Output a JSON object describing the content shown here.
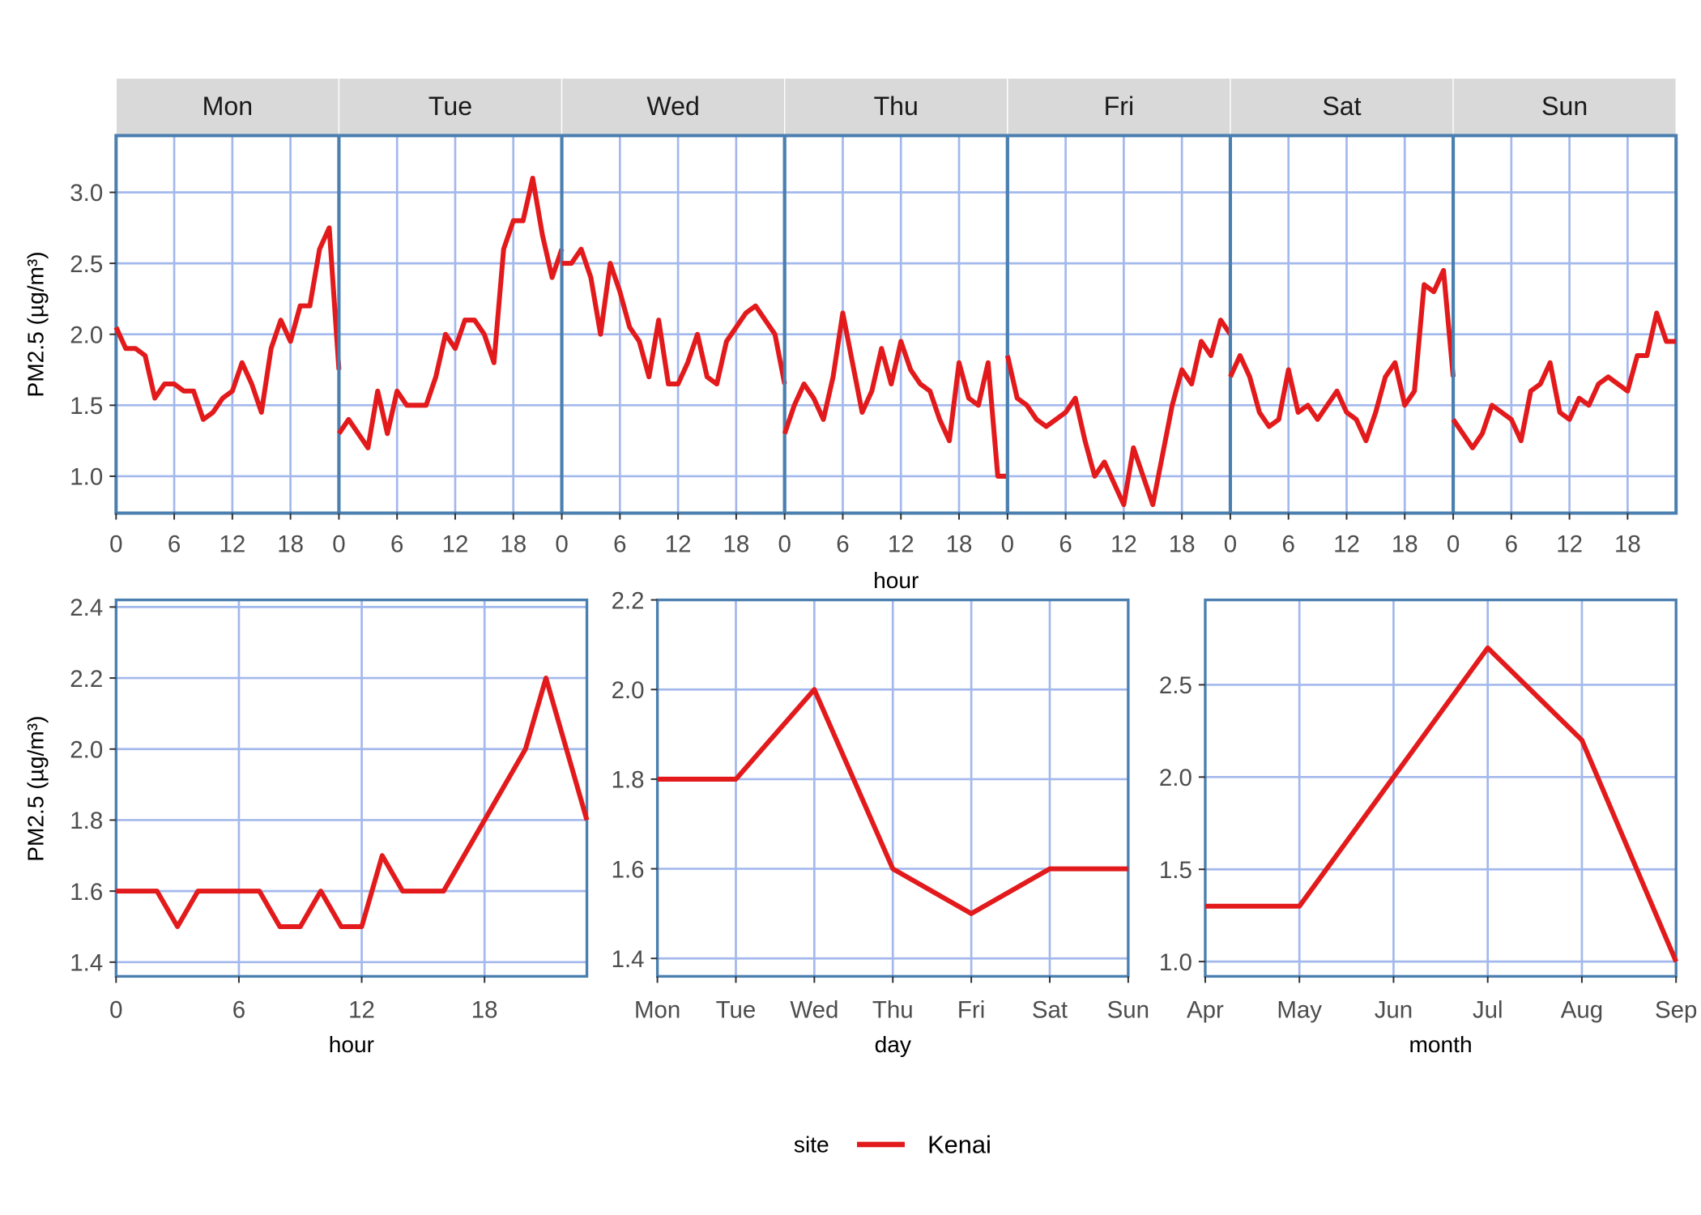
{
  "colors": {
    "line": "#e31a1c",
    "grid": "#a3b8ec",
    "border": "#4a7fb0",
    "strip": "#d9d9d9"
  },
  "legend": {
    "title": "site",
    "entries": [
      "Kenai"
    ]
  },
  "chart_data": [
    {
      "type": "line",
      "facet_by": "day",
      "xlabel": "hour",
      "ylabel": "PM2.5 (µg/m³)",
      "xlim": [
        0,
        23
      ],
      "xticks": [
        0,
        6,
        12,
        18
      ],
      "ylim": [
        0.74,
        3.4
      ],
      "yticks": [
        1.0,
        1.5,
        2.0,
        2.5,
        3.0
      ],
      "grid": true,
      "facets": [
        {
          "label": "Mon",
          "values": [
            2.05,
            1.9,
            1.9,
            1.85,
            1.55,
            1.65,
            1.65,
            1.6,
            1.6,
            1.4,
            1.45,
            1.55,
            1.6,
            1.8,
            1.65,
            1.45,
            1.9,
            2.1,
            1.95,
            2.2,
            2.2,
            2.6,
            2.75,
            1.75
          ]
        },
        {
          "label": "Tue",
          "values": [
            1.3,
            1.4,
            1.3,
            1.2,
            1.6,
            1.3,
            1.6,
            1.5,
            1.5,
            1.5,
            1.7,
            2.0,
            1.9,
            2.1,
            2.1,
            2.0,
            1.8,
            2.6,
            2.8,
            2.8,
            3.1,
            2.7,
            2.4,
            2.6
          ]
        },
        {
          "label": "Wed",
          "values": [
            2.5,
            2.5,
            2.6,
            2.4,
            2.0,
            2.5,
            2.3,
            2.05,
            1.95,
            1.7,
            2.1,
            1.65,
            1.65,
            1.8,
            2.0,
            1.7,
            1.65,
            1.95,
            2.05,
            2.15,
            2.2,
            2.1,
            2.0,
            1.65
          ]
        },
        {
          "label": "Thu",
          "values": [
            1.3,
            1.5,
            1.65,
            1.55,
            1.4,
            1.7,
            2.15,
            1.8,
            1.45,
            1.6,
            1.9,
            1.65,
            1.95,
            1.75,
            1.65,
            1.6,
            1.4,
            1.25,
            1.8,
            1.55,
            1.5,
            1.8,
            1.0,
            1.0
          ]
        },
        {
          "label": "Fri",
          "values": [
            1.85,
            1.55,
            1.5,
            1.4,
            1.35,
            1.4,
            1.45,
            1.55,
            1.25,
            1.0,
            1.1,
            0.95,
            0.8,
            1.2,
            1.0,
            0.8,
            1.15,
            1.5,
            1.75,
            1.65,
            1.95,
            1.85,
            2.1,
            2.0
          ]
        },
        {
          "label": "Sat",
          "values": [
            1.7,
            1.85,
            1.7,
            1.45,
            1.35,
            1.4,
            1.75,
            1.45,
            1.5,
            1.4,
            1.5,
            1.6,
            1.45,
            1.4,
            1.25,
            1.45,
            1.7,
            1.8,
            1.5,
            1.6,
            2.35,
            2.3,
            2.45,
            1.7
          ]
        },
        {
          "label": "Sun",
          "values": [
            1.4,
            1.3,
            1.2,
            1.3,
            1.5,
            1.45,
            1.4,
            1.25,
            1.6,
            1.65,
            1.8,
            1.45,
            1.4,
            1.55,
            1.5,
            1.65,
            1.7,
            1.65,
            1.6,
            1.85,
            1.85,
            2.15,
            1.95,
            1.95
          ]
        }
      ]
    },
    {
      "type": "line",
      "xlabel": "hour",
      "ylabel": "PM2.5 (µg/m³)",
      "xlim": [
        0,
        23
      ],
      "xticks": [
        0,
        6,
        12,
        18
      ],
      "ylim": [
        1.36,
        2.42
      ],
      "yticks": [
        1.4,
        1.6,
        1.8,
        2.0,
        2.2,
        2.4
      ],
      "grid": true,
      "x": [
        0,
        1,
        2,
        3,
        4,
        5,
        6,
        7,
        8,
        9,
        10,
        11,
        12,
        13,
        14,
        15,
        16,
        17,
        18,
        19,
        20,
        21,
        22,
        23
      ],
      "values": [
        1.6,
        1.6,
        1.6,
        1.5,
        1.6,
        1.6,
        1.6,
        1.6,
        1.5,
        1.5,
        1.6,
        1.5,
        1.5,
        1.7,
        1.6,
        1.6,
        1.6,
        1.7,
        1.8,
        1.9,
        2.0,
        2.2,
        2.0,
        1.8
      ]
    },
    {
      "type": "line",
      "xlabel": "day",
      "ylabel": "",
      "categories": [
        "Mon",
        "Tue",
        "Wed",
        "Thu",
        "Fri",
        "Sat",
        "Sun"
      ],
      "ylim": [
        1.36,
        2.2
      ],
      "yticks": [
        1.4,
        1.6,
        1.8,
        2.0,
        2.2
      ],
      "grid": true,
      "values": [
        1.8,
        1.8,
        2.0,
        1.6,
        1.5,
        1.6,
        1.6
      ]
    },
    {
      "type": "line",
      "xlabel": "month",
      "ylabel": "",
      "categories": [
        "Apr",
        "May",
        "Jun",
        "Jul",
        "Aug",
        "Sep"
      ],
      "ylim": [
        0.92,
        2.96
      ],
      "yticks": [
        1.0,
        1.5,
        2.0,
        2.5
      ],
      "grid": true,
      "values": [
        1.3,
        1.3,
        2.0,
        2.7,
        2.2,
        1.0
      ]
    }
  ]
}
